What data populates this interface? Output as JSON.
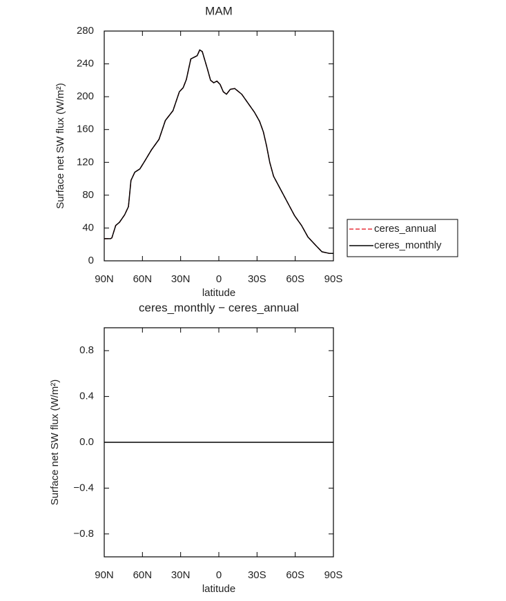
{
  "chart_data": [
    {
      "type": "line",
      "title": "MAM",
      "xlabel": "latitude",
      "ylabel": "Surface net SW flux (W/m²)",
      "x": [
        90,
        85,
        84,
        81,
        78,
        74,
        71,
        69,
        66,
        62,
        58,
        53,
        47,
        42,
        36,
        31,
        28,
        25.5,
        22,
        17,
        15,
        13,
        9,
        6.5,
        4,
        1.5,
        -1,
        -3.5,
        -6,
        -9,
        -12.5,
        -18,
        -23,
        -28,
        -32,
        -35,
        -37.5,
        -40,
        -43,
        -48.5,
        -54,
        -59.5,
        -65,
        -70,
        -76,
        -81,
        -87,
        -90
      ],
      "series": [
        {
          "name": "ceres_annual",
          "color": "#e8303a",
          "dash": true,
          "values": [
            27,
            27,
            28,
            43,
            47,
            56,
            66,
            98,
            108,
            112,
            122,
            135,
            148,
            171,
            183,
            206,
            211,
            221,
            246,
            250,
            257,
            255,
            234,
            220,
            217,
            219,
            215,
            206,
            203,
            209,
            210,
            203,
            192,
            181,
            170,
            157,
            140,
            120,
            103,
            87,
            71,
            55,
            43,
            29,
            19,
            11,
            9,
            9
          ]
        },
        {
          "name": "ceres_monthly",
          "color": "#000000",
          "dash": false,
          "values": [
            27,
            27,
            28,
            43,
            47,
            56,
            66,
            98,
            108,
            112,
            122,
            135,
            148,
            171,
            183,
            206,
            211,
            221,
            246,
            250,
            257,
            255,
            234,
            220,
            217,
            219,
            215,
            206,
            203,
            209,
            210,
            203,
            192,
            181,
            170,
            157,
            140,
            120,
            103,
            87,
            71,
            55,
            43,
            29,
            19,
            11,
            9,
            9
          ]
        }
      ],
      "xlim": [
        90,
        -90
      ],
      "xticks": [
        {
          "value": 90,
          "label": "90N"
        },
        {
          "value": 60,
          "label": "60N"
        },
        {
          "value": 30,
          "label": "30N"
        },
        0,
        {
          "value": -30,
          "label": "30S"
        },
        {
          "value": -60,
          "label": "60S"
        },
        {
          "value": -90,
          "label": "90S"
        }
      ],
      "ylim": [
        0,
        280
      ],
      "yticks": [
        0,
        40,
        80,
        120,
        160,
        200,
        240,
        280
      ],
      "legend": "right"
    },
    {
      "type": "line",
      "title": "ceres_monthly − ceres_annual",
      "xlabel": "latitude",
      "ylabel": "Surface net SW flux (W/m²)",
      "x": [
        90,
        -90
      ],
      "series": [
        {
          "color": "#000000",
          "dash": false,
          "values": [
            0,
            0
          ]
        }
      ],
      "xlim": [
        90,
        -90
      ],
      "xticks": [
        {
          "value": 90,
          "label": "90N"
        },
        {
          "value": 60,
          "label": "60N"
        },
        {
          "value": 30,
          "label": "30N"
        },
        0,
        {
          "value": -30,
          "label": "30S"
        },
        {
          "value": -60,
          "label": "60S"
        },
        {
          "value": -90,
          "label": "90S"
        }
      ],
      "ylim": [
        -1,
        1
      ],
      "yticks": [
        {
          "value": -0.8,
          "label": "−0.8"
        },
        {
          "value": -0.4,
          "label": "−0.4"
        },
        {
          "value": 0,
          "label": "0.0"
        },
        {
          "value": 0.4,
          "label": "0.4"
        },
        {
          "value": 0.8,
          "label": "0.8"
        }
      ]
    }
  ]
}
